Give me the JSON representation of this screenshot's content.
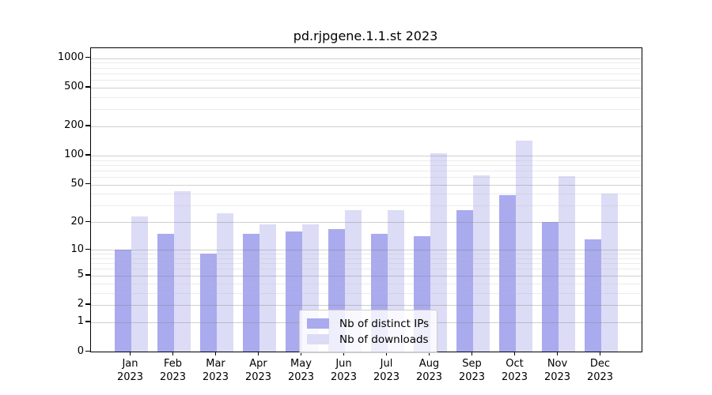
{
  "title": "pd.rjpgene.1.1.st 2023",
  "legend": {
    "items": [
      {
        "label": "Nb of distinct IPs",
        "color": "#aaaaee"
      },
      {
        "label": "Nb of downloads",
        "color": "#dcdcf7"
      }
    ]
  },
  "chart_data": {
    "type": "bar",
    "title": "pd.rjpgene.1.1.st 2023",
    "categories": [
      "Jan",
      "Feb",
      "Mar",
      "Apr",
      "May",
      "Jun",
      "Jul",
      "Aug",
      "Sep",
      "Oct",
      "Nov",
      "Dec"
    ],
    "category_year": "2023",
    "series": [
      {
        "name": "Nb of distinct IPs",
        "color": "#aaaaee",
        "values": [
          10,
          15,
          9,
          15,
          16,
          17,
          15,
          14,
          27,
          39,
          20,
          13
        ]
      },
      {
        "name": "Nb of downloads",
        "color": "#dcdcf7",
        "values": [
          23,
          43,
          25,
          19,
          19,
          27,
          27,
          105,
          62,
          143,
          61,
          40
        ]
      }
    ],
    "xlabel": "",
    "ylabel": "",
    "yscale": "log1p",
    "yticks": [
      0,
      1,
      2,
      5,
      10,
      20,
      50,
      100,
      200,
      500,
      1000
    ],
    "ylim": [
      0,
      1264
    ],
    "grid": "horizontal",
    "legend_position": "lower center"
  }
}
